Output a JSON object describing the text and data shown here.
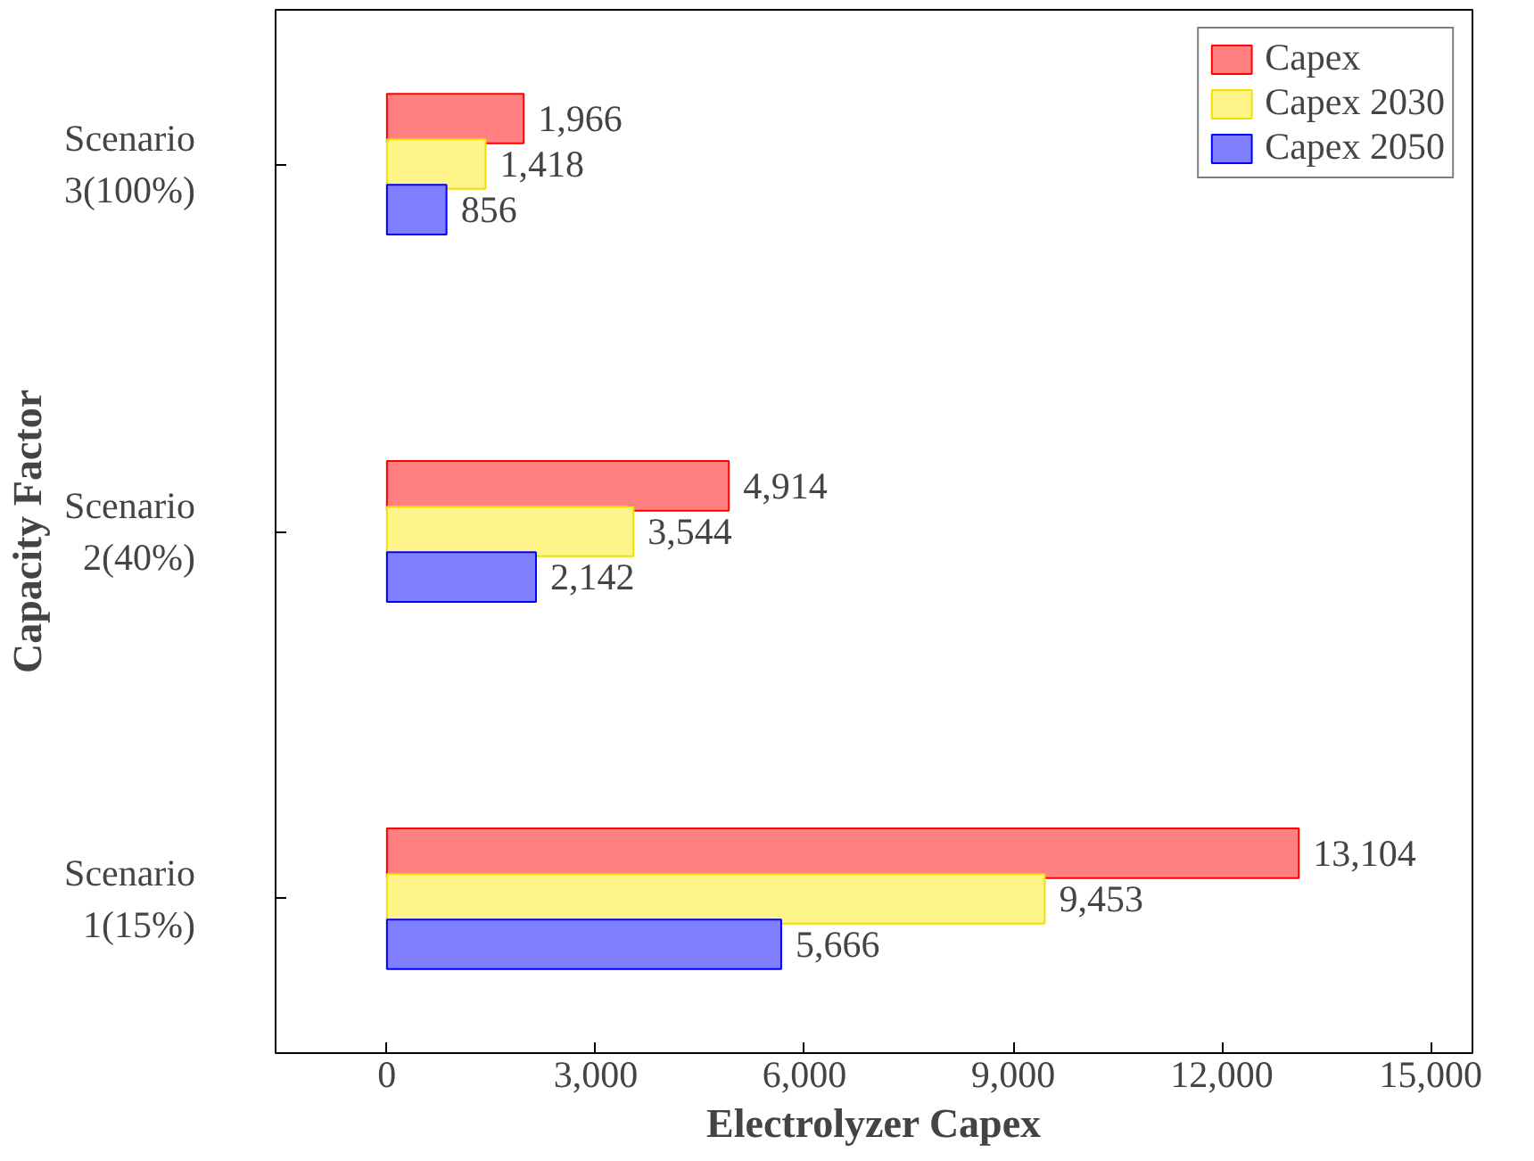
{
  "chart_data": {
    "type": "bar",
    "orientation": "horizontal",
    "xlabel": "Electrolyzer Capex",
    "ylabel": "Capacity Factor",
    "categories": [
      "Scenario 3(100%)",
      "Scenario 2(40%)",
      "Scenario 1(15%)"
    ],
    "series": [
      {
        "name": "Capex",
        "color": "#ff8080",
        "values": [
          1966,
          4914,
          13104
        ],
        "value_labels": [
          "1,966",
          "4,914",
          "13,104"
        ]
      },
      {
        "name": "Capex 2030",
        "color": "#fff48a",
        "values": [
          1418,
          3544,
          9453
        ],
        "value_labels": [
          "1,418",
          "3,544",
          "9,453"
        ]
      },
      {
        "name": "Capex 2050",
        "color": "#8080ff",
        "values": [
          856,
          2142,
          5666
        ],
        "value_labels": [
          "856",
          "2,142",
          "5,666"
        ]
      }
    ],
    "xlim": [
      -1600,
      15600
    ],
    "xticks": [
      0,
      {
        "value": 3000,
        "label": "3,000"
      },
      {
        "value": 6000,
        "label": "6,000"
      },
      {
        "value": 9000,
        "label": "9,000"
      },
      {
        "value": 12000,
        "label": "12,000"
      },
      {
        "value": 15000,
        "label": "15,000"
      }
    ],
    "legend": "top right",
    "grid": false
  }
}
